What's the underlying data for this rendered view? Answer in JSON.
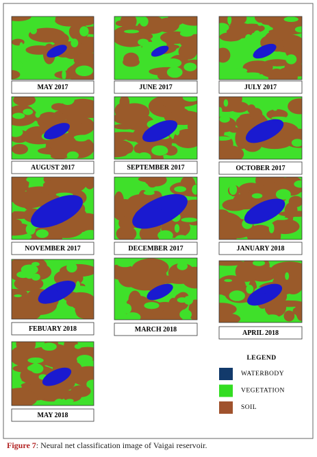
{
  "panels": [
    {
      "label": "MAY 2017"
    },
    {
      "label": "JUNE 2017"
    },
    {
      "label": "JULY 2017"
    },
    {
      "label": "AUGUST 2017"
    },
    {
      "label": "SEPTEMBER 2017"
    },
    {
      "label": "OCTOBER 2017"
    },
    {
      "label": "NOVEMBER 2017"
    },
    {
      "label": "DECEMBER 2017"
    },
    {
      "label": "JANUARY 2018"
    },
    {
      "label": "FEBUARY 2018"
    },
    {
      "label": "MARCH 2018"
    },
    {
      "label": "APRIL 2018"
    },
    {
      "label": "MAY 2018"
    }
  ],
  "legend": {
    "title": "LEGEND",
    "items": [
      {
        "label": "WATERBODY",
        "color": "#123a6b"
      },
      {
        "label": "VEGETATION",
        "color": "#33dd22"
      },
      {
        "label": "SOIL",
        "color": "#a0522d"
      }
    ]
  },
  "caption": {
    "label": "Figure 7",
    "text": ": Neural net classification image of Vaigai reservoir."
  }
}
